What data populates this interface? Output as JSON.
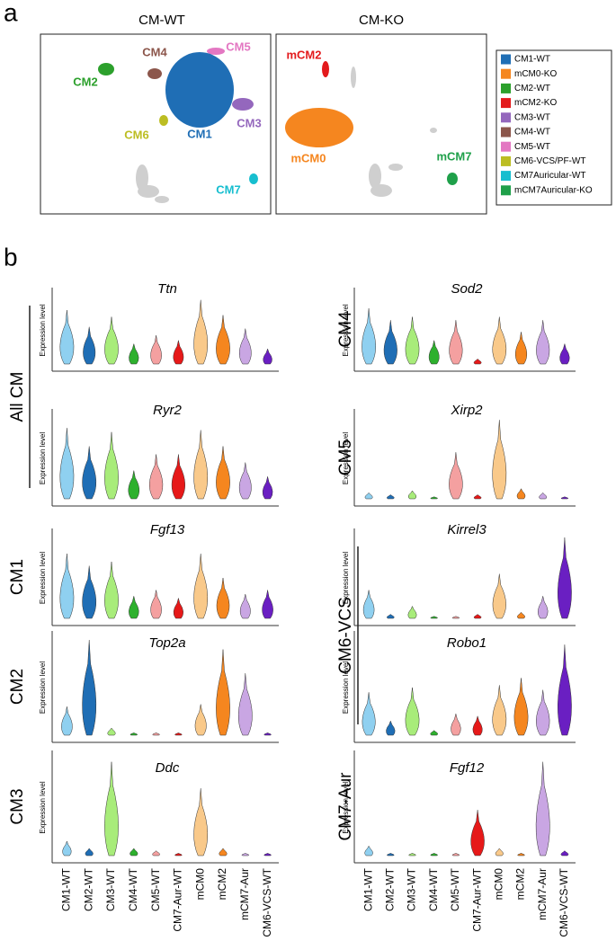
{
  "panel_a": {
    "label": "a",
    "umaps": [
      {
        "title": "CM-WT",
        "clusters": [
          {
            "label": "CM4",
            "color": "#8c564b"
          },
          {
            "label": "CM5",
            "color": "#e377c2"
          },
          {
            "label": "CM2",
            "color": "#2ca02c"
          },
          {
            "label": "CM3",
            "color": "#9467bd"
          },
          {
            "label": "CM6",
            "color": "#bcbd22"
          },
          {
            "label": "CM1",
            "color": "#1f6eb5"
          },
          {
            "label": "CM7",
            "color": "#17becf"
          }
        ]
      },
      {
        "title": "CM-KO",
        "clusters": [
          {
            "label": "mCM2",
            "color": "#e31a1c"
          },
          {
            "label": "mCM0",
            "color": "#f5861f"
          },
          {
            "label": "mCM7",
            "color": "#1fa04a"
          }
        ]
      }
    ],
    "legend": [
      {
        "label": "CM1-WT",
        "color": "#1f6eb5"
      },
      {
        "label": "mCM0-KO",
        "color": "#f5861f"
      },
      {
        "label": "CM2-WT",
        "color": "#2ca02c"
      },
      {
        "label": "mCM2-KO",
        "color": "#e31a1c"
      },
      {
        "label": "CM3-WT",
        "color": "#9467bd"
      },
      {
        "label": "CM4-WT",
        "color": "#8c564b"
      },
      {
        "label": "CM5-WT",
        "color": "#e377c2"
      },
      {
        "label": "CM6-VCS/PF-WT",
        "color": "#bcbd22"
      },
      {
        "label": "CM7Auricular-WT",
        "color": "#17becf"
      },
      {
        "label": "mCM7Auricular-KO",
        "color": "#1fa04a"
      }
    ]
  },
  "panel_b": {
    "label": "b",
    "y_axis_label": "Expression level",
    "ylim": [
      0,
      4
    ],
    "categories": [
      "CM1-WT",
      "CM2-WT",
      "CM3-WT",
      "CM4-WT",
      "CM5-WT",
      "CM7-Aur-WT",
      "mCM0",
      "mCM2",
      "mCM7-Aur",
      "CM6-VCS-WT"
    ],
    "colors": [
      "#8fd0f0",
      "#1f6eb5",
      "#a8ec7a",
      "#2db02d",
      "#f4a0a0",
      "#e61919",
      "#f9c98a",
      "#f5861f",
      "#c9a6e3",
      "#6a1fc2"
    ],
    "columns": [
      {
        "genes": [
          {
            "gene": "Ttn",
            "group": "All CM",
            "values": [
              3.2,
              2.2,
              2.8,
              1.2,
              1.7,
              1.4,
              3.8,
              2.9,
              2.1,
              0.9
            ]
          },
          {
            "gene": "Ryr2",
            "group": null,
            "values": [
              3.5,
              2.6,
              3.3,
              1.4,
              2.2,
              2.2,
              3.4,
              2.6,
              1.8,
              1.1
            ]
          },
          {
            "gene": "Fgf13",
            "group": "CM1",
            "values": [
              3.2,
              2.6,
              2.8,
              1.1,
              1.4,
              1.0,
              3.2,
              2.0,
              1.2,
              1.4
            ]
          },
          {
            "gene": "Top2a",
            "group": "CM2",
            "values": [
              1.2,
              4.0,
              0.3,
              0.1,
              0.1,
              0.1,
              1.3,
              3.6,
              2.6,
              0.1
            ]
          },
          {
            "gene": "Ddc",
            "group": "CM3",
            "values": [
              0.6,
              0.3,
              3.9,
              0.3,
              0.2,
              0.1,
              2.8,
              0.3,
              0.1,
              0.1
            ]
          }
        ]
      },
      {
        "genes": [
          {
            "gene": "Sod2",
            "group": "CM4",
            "values": [
              3.3,
              2.6,
              2.8,
              1.4,
              2.6,
              0.3,
              2.8,
              1.9,
              2.6,
              1.2
            ]
          },
          {
            "gene": "Xirp2",
            "group": "CM5",
            "values": [
              0.3,
              0.2,
              0.4,
              0.1,
              2.3,
              0.2,
              3.9,
              0.5,
              0.3,
              0.1
            ]
          },
          {
            "gene": "Kirrel3",
            "group": "CM6-VCS",
            "values": [
              1.4,
              0.2,
              0.6,
              0.1,
              0.1,
              0.2,
              2.2,
              0.3,
              1.1,
              4.0
            ]
          },
          {
            "gene": "Robo1",
            "group": null,
            "values": [
              1.8,
              0.6,
              2.0,
              0.2,
              0.9,
              0.8,
              2.1,
              2.4,
              1.9,
              3.8
            ]
          },
          {
            "gene": "Fgf12",
            "group": "CM7-Aur",
            "values": [
              0.4,
              0.1,
              0.1,
              0.1,
              0.1,
              1.9,
              0.3,
              0.1,
              3.9,
              0.2
            ]
          }
        ]
      }
    ]
  }
}
